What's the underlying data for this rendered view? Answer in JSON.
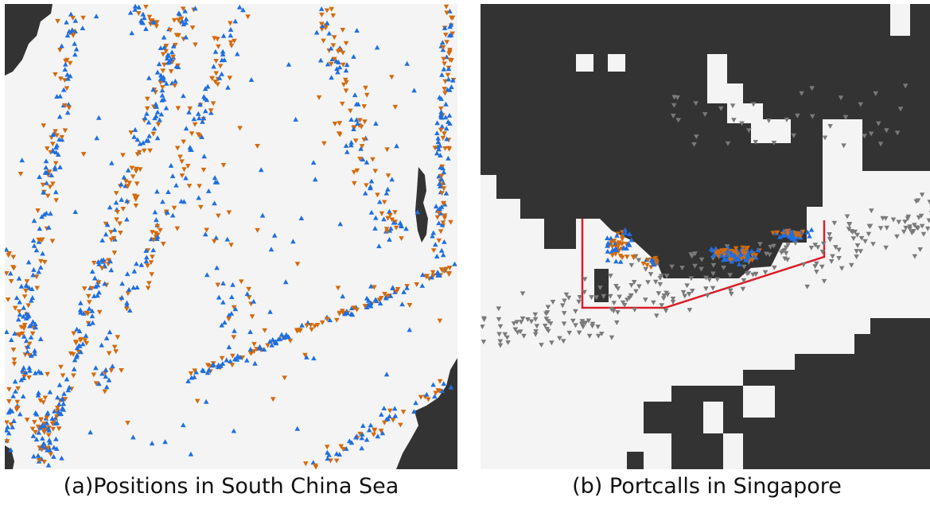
{
  "figures": {
    "a": {
      "caption": "(a)Positions in South China Sea"
    },
    "b": {
      "caption": "(b) Portcalls in Singapore"
    }
  },
  "colors": {
    "sea": "#f4f4f4",
    "land": "#333333",
    "blue_marker": "#1f6fe0",
    "orange_marker": "#d46a0c",
    "gray_marker": "#7a7a7a",
    "port_boundary": "#d81f2a"
  },
  "icons": {
    "blue": "triangle-up",
    "orange": "triangle-down",
    "gray": "triangle-down"
  }
}
